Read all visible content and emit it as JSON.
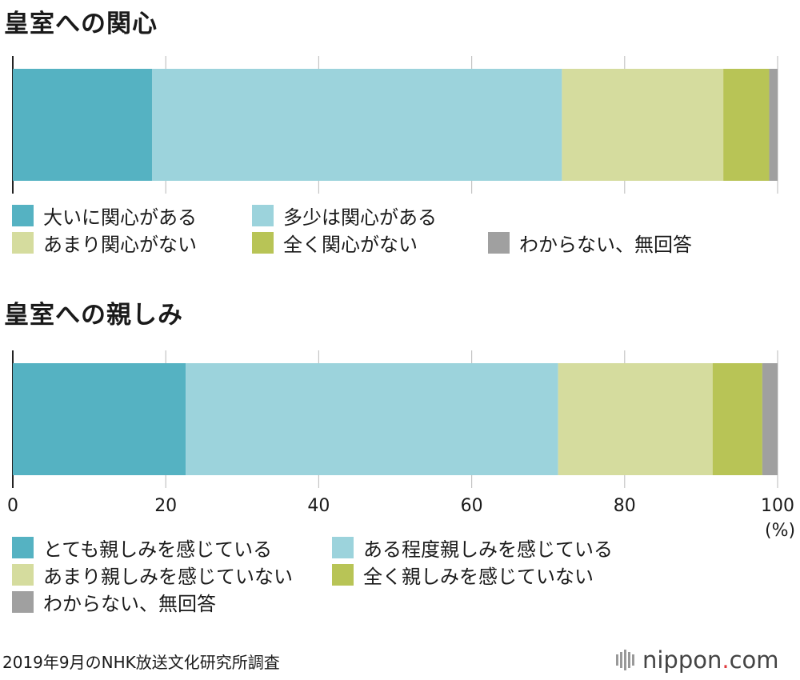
{
  "chart_data": [
    {
      "type": "bar",
      "orientation": "horizontal-stacked",
      "title": "皇室への関心",
      "categories": [
        ""
      ],
      "xlim": [
        0,
        100
      ],
      "grid": true,
      "series": [
        {
          "name": "大いに関心がある",
          "values": [
            18.2
          ],
          "color": "#55b2c2"
        },
        {
          "name": "多少は関心がある",
          "values": [
            53.6
          ],
          "color": "#9cd3dc"
        },
        {
          "name": "あまり関心がない",
          "values": [
            21.1
          ],
          "color": "#d5dc9e"
        },
        {
          "name": "全く関心がない",
          "values": [
            6.0
          ],
          "color": "#b8c456"
        },
        {
          "name": "わからない、無回答",
          "values": [
            1.1
          ],
          "color": "#a0a0a0"
        }
      ]
    },
    {
      "type": "bar",
      "orientation": "horizontal-stacked",
      "title": "皇室への親しみ",
      "categories": [
        ""
      ],
      "xlim": [
        0,
        100
      ],
      "xticks": [
        "0",
        "20",
        "40",
        "60",
        "80",
        "100"
      ],
      "xlabel": "(%)",
      "grid": true,
      "series": [
        {
          "name": "とても親しみを感じている",
          "values": [
            22.6
          ],
          "color": "#55b2c2"
        },
        {
          "name": "ある程度親しみを感じている",
          "values": [
            48.7
          ],
          "color": "#9cd3dc"
        },
        {
          "name": "あまり親しみを感じていない",
          "values": [
            20.2
          ],
          "color": "#d5dc9e"
        },
        {
          "name": "全く親しみを感じていない",
          "values": [
            6.5
          ],
          "color": "#b8c456"
        },
        {
          "name": "わからない、無回答",
          "values": [
            2.0
          ],
          "color": "#a0a0a0"
        }
      ]
    }
  ],
  "source": "2019年9月のNHK放送文化研究所調査",
  "brand": {
    "name": "nippon",
    "dot": ".",
    "suffix": "com"
  }
}
